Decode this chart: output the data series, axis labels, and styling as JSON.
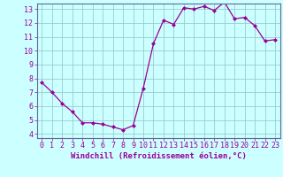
{
  "x": [
    0,
    1,
    2,
    3,
    4,
    5,
    6,
    7,
    8,
    9,
    10,
    11,
    12,
    13,
    14,
    15,
    16,
    17,
    18,
    19,
    20,
    21,
    22,
    23
  ],
  "y": [
    7.7,
    7.0,
    6.2,
    5.6,
    4.8,
    4.8,
    4.7,
    4.5,
    4.3,
    4.6,
    7.3,
    10.5,
    12.2,
    11.9,
    13.1,
    13.0,
    13.2,
    12.9,
    13.5,
    12.3,
    12.4,
    11.8,
    10.7,
    10.8
  ],
  "xlabel": "Windchill (Refroidissement éolien,°C)",
  "ylim_min": 4,
  "ylim_max": 13,
  "xlim_min": 0,
  "xlim_max": 23,
  "yticks": [
    4,
    5,
    6,
    7,
    8,
    9,
    10,
    11,
    12,
    13
  ],
  "xticks": [
    0,
    1,
    2,
    3,
    4,
    5,
    6,
    7,
    8,
    9,
    10,
    11,
    12,
    13,
    14,
    15,
    16,
    17,
    18,
    19,
    20,
    21,
    22,
    23
  ],
  "line_color": "#990099",
  "marker": "D",
  "marker_size": 2.0,
  "bg_color": "#ccffff",
  "grid_color": "#99cccc",
  "xlabel_fontsize": 6.5,
  "tick_fontsize": 6.0,
  "spine_color": "#666699"
}
